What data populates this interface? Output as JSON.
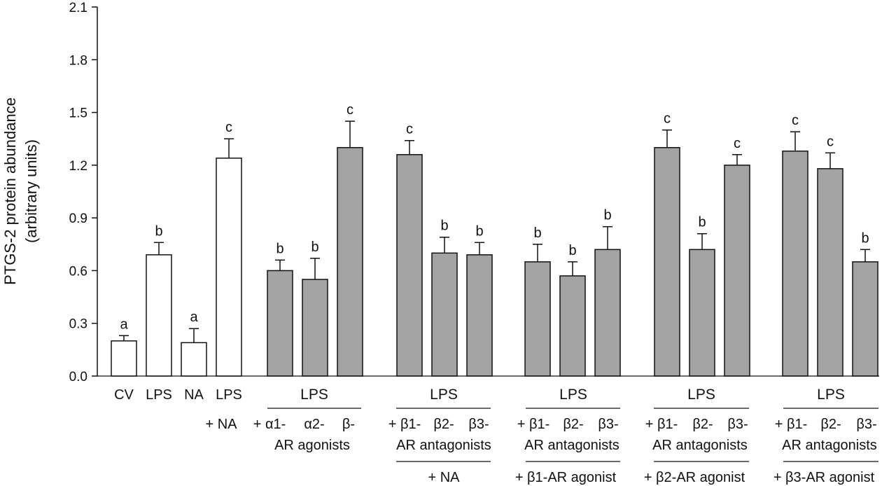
{
  "chart_data": {
    "type": "bar",
    "ylabel_line1": "PTGS-2 protein abundance",
    "ylabel_line2": "(arbitrary units)",
    "ylim": [
      0,
      2.1
    ],
    "yticks": [
      "0.0",
      "0.3",
      "0.6",
      "0.9",
      "1.2",
      "1.5",
      "1.8",
      "2.1"
    ],
    "colors": {
      "white": "#ffffff",
      "gray": "#a3a3a3",
      "stroke": "#111111"
    },
    "bars": [
      {
        "label": "CV",
        "value": 0.2,
        "error": 0.03,
        "letter": "a",
        "fill": "white"
      },
      {
        "label": "LPS",
        "value": 0.69,
        "error": 0.07,
        "letter": "b",
        "fill": "white"
      },
      {
        "label": "NA",
        "value": 0.19,
        "error": 0.08,
        "letter": "a",
        "fill": "white"
      },
      {
        "label": "LPS + NA",
        "value": 1.24,
        "error": 0.11,
        "letter": "c",
        "fill": "white"
      },
      {
        "label": "LPS + α1-AR agonist",
        "value": 0.6,
        "error": 0.06,
        "letter": "b",
        "fill": "gray"
      },
      {
        "label": "LPS + α2-AR agonist",
        "value": 0.55,
        "error": 0.12,
        "letter": "b",
        "fill": "gray"
      },
      {
        "label": "LPS + β-AR agonist",
        "value": 1.3,
        "error": 0.15,
        "letter": "c",
        "fill": "gray"
      },
      {
        "label": "LPS + β1-AR antagonist + NA",
        "value": 1.26,
        "error": 0.08,
        "letter": "c",
        "fill": "gray"
      },
      {
        "label": "LPS + β2-AR antagonist + NA",
        "value": 0.7,
        "error": 0.09,
        "letter": "b",
        "fill": "gray"
      },
      {
        "label": "LPS + β3-AR antagonist + NA",
        "value": 0.69,
        "error": 0.07,
        "letter": "b",
        "fill": "gray"
      },
      {
        "label": "LPS + β1-AR antagonist + β1-AR agonist",
        "value": 0.65,
        "error": 0.1,
        "letter": "b",
        "fill": "gray"
      },
      {
        "label": "LPS + β2-AR antagonist + β1-AR agonist",
        "value": 0.57,
        "error": 0.08,
        "letter": "b",
        "fill": "gray"
      },
      {
        "label": "LPS + β3-AR antagonist + β1-AR agonist",
        "value": 0.72,
        "error": 0.13,
        "letter": "b",
        "fill": "gray"
      },
      {
        "label": "LPS + β1-AR antagonist + β2-AR agonist",
        "value": 1.3,
        "error": 0.1,
        "letter": "c",
        "fill": "gray"
      },
      {
        "label": "LPS + β2-AR antagonist + β2-AR agonist",
        "value": 0.72,
        "error": 0.09,
        "letter": "b",
        "fill": "gray"
      },
      {
        "label": "LPS + β3-AR antagonist + β2-AR agonist",
        "value": 1.2,
        "error": 0.06,
        "letter": "c",
        "fill": "gray"
      },
      {
        "label": "LPS + β1-AR antagonist + β3-AR agonist",
        "value": 1.28,
        "error": 0.11,
        "letter": "c",
        "fill": "gray"
      },
      {
        "label": "LPS + β2-AR antagonist + β3-AR agonist",
        "value": 1.18,
        "error": 0.09,
        "letter": "c",
        "fill": "gray"
      },
      {
        "label": "LPS + β3-AR antagonist + β3-AR agonist",
        "value": 0.65,
        "error": 0.07,
        "letter": "b",
        "fill": "gray"
      }
    ],
    "xlabels": {
      "cv": "CV",
      "lps": "LPS",
      "na": "NA",
      "lps_na_top": "LPS",
      "lps_na_bottom": "+ NA"
    },
    "groups": [
      {
        "header": "LPS",
        "subs": [
          "+ α1-",
          "α2-",
          "β-"
        ],
        "desc": "AR agonists",
        "footer": ""
      },
      {
        "header": "LPS",
        "subs": [
          "+ β1-",
          "β2-",
          "β3-"
        ],
        "desc": "AR antagonists",
        "footer": "+ NA"
      },
      {
        "header": "LPS",
        "subs": [
          "+ β1-",
          "β2-",
          "β3-"
        ],
        "desc": "AR antagonists",
        "footer": "+ β1-AR agonist"
      },
      {
        "header": "LPS",
        "subs": [
          "+ β1-",
          "β2-",
          "β3-"
        ],
        "desc": "AR antagonists",
        "footer": "+ β2-AR agonist"
      },
      {
        "header": "LPS",
        "subs": [
          "+ β1-",
          "β2-",
          "β3-"
        ],
        "desc": "AR antagonists",
        "footer": "+ β3-AR agonist"
      }
    ]
  }
}
